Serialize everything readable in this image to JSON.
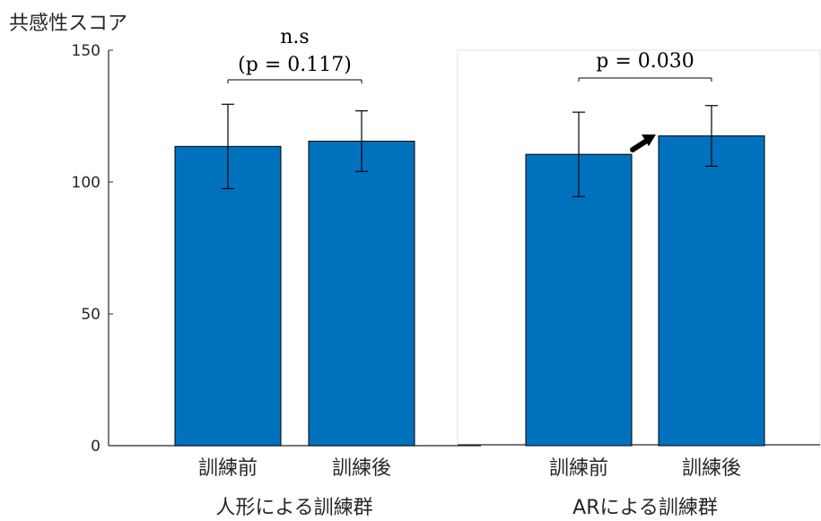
{
  "chart_data": {
    "type": "bar",
    "ylabel": "共感性スコア",
    "ylim": [
      0,
      150
    ],
    "yticks": [
      "0",
      "50",
      "100",
      "150"
    ],
    "bar_color": "#0072BD",
    "groups": [
      {
        "name": "人形による訓練群",
        "categories": [
          "訓練前",
          "訓練後"
        ],
        "values": [
          113.5,
          115.5
        ],
        "errors": [
          16,
          11.5
        ],
        "annotation": [
          "n.s",
          "(p = 0.117)"
        ]
      },
      {
        "name": "ARによる訓練群",
        "categories": [
          "訓練前",
          "訓練後"
        ],
        "values": [
          110.5,
          117.5
        ],
        "errors": [
          16,
          11.5
        ],
        "annotation": [
          "p = 0.030"
        ]
      }
    ]
  }
}
